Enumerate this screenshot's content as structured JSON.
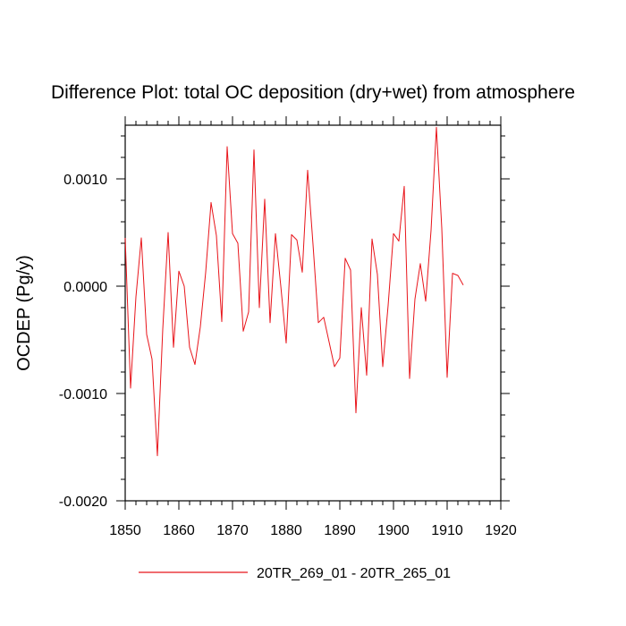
{
  "chart_data": {
    "type": "line",
    "title": "Difference Plot: total OC deposition (dry+wet) from atmosphere",
    "xlabel": "",
    "ylabel": "OCDEP  (Pg/y)",
    "xlim": [
      1850,
      1920
    ],
    "ylim": [
      -0.002,
      0.0015
    ],
    "x_ticks": [
      1850,
      1860,
      1870,
      1880,
      1890,
      1900,
      1910,
      1920
    ],
    "x_tick_labels": [
      "1850",
      "1860",
      "1870",
      "1880",
      "1890",
      "1900",
      "1910",
      "1920"
    ],
    "y_ticks": [
      -0.002,
      -0.001,
      0.0,
      0.001
    ],
    "y_tick_labels": [
      "-0.0020",
      "-0.0010",
      "0.0000",
      "0.0010"
    ],
    "series": [
      {
        "name": "20TR_269_01 - 20TR_265_01",
        "color": "#e8141a",
        "x": [
          1850,
          1851,
          1852,
          1853,
          1854,
          1855,
          1856,
          1857,
          1858,
          1859,
          1860,
          1861,
          1862,
          1863,
          1864,
          1865,
          1866,
          1867,
          1868,
          1869,
          1870,
          1871,
          1872,
          1873,
          1874,
          1875,
          1876,
          1877,
          1878,
          1879,
          1880,
          1881,
          1882,
          1883,
          1884,
          1885,
          1886,
          1887,
          1888,
          1889,
          1890,
          1891,
          1892,
          1893,
          1894,
          1895,
          1896,
          1897,
          1898,
          1899,
          1900,
          1901,
          1902,
          1903,
          1904,
          1905,
          1906,
          1907,
          1908,
          1909,
          1910,
          1911,
          1912,
          1913
        ],
        "values": [
          0.00045,
          -0.00095,
          -0.0001,
          0.00045,
          -0.00045,
          -0.00068,
          -0.00158,
          -0.0004,
          0.0005,
          -0.00057,
          0.00014,
          0.0,
          -0.00057,
          -0.00073,
          -0.00038,
          0.00013,
          0.00078,
          0.00047,
          -0.00033,
          0.0013,
          0.00049,
          0.0004,
          -0.00042,
          -0.00024,
          0.00127,
          -0.0002,
          0.00081,
          -0.00034,
          0.00049,
          0.0,
          -0.00053,
          0.00048,
          0.00043,
          0.00013,
          0.00108,
          0.00039,
          -0.00034,
          -0.00029,
          -0.00052,
          -0.00075,
          -0.00067,
          0.00026,
          0.00015,
          -0.00118,
          -0.0002,
          -0.00083,
          0.00044,
          0.00011,
          -0.00075,
          -0.00018,
          0.00049,
          0.00042,
          0.00093,
          -0.00086,
          -0.00012,
          0.00021,
          -0.00014,
          0.00052,
          0.00148,
          0.00054,
          -0.00085,
          0.00012,
          0.0001,
          1e-05
        ]
      }
    ],
    "legend": {
      "position": "bottom-center"
    }
  }
}
